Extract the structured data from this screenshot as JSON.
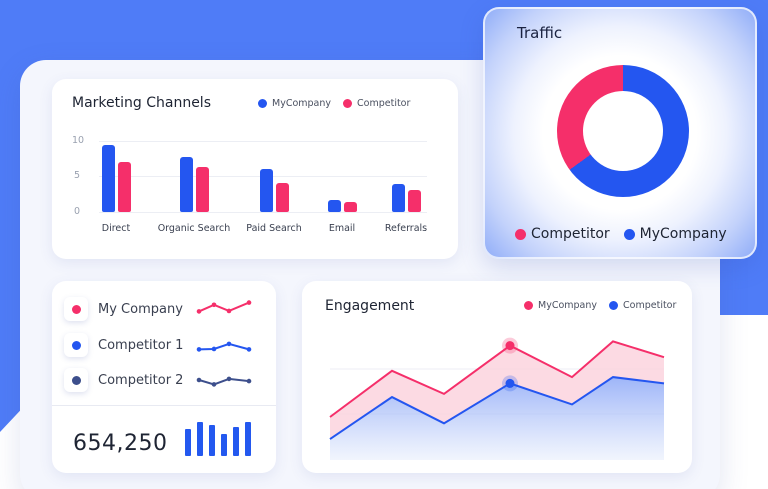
{
  "colors": {
    "my_company": "#2456f0",
    "competitor": "#f52f6a",
    "competitor2": "#3d4f8c",
    "background": "#4f7cf7"
  },
  "marketing": {
    "title": "Marketing Channels",
    "legend": [
      "MyCompany",
      "Competitor"
    ],
    "y_ticks": [
      "10",
      "5",
      "0"
    ]
  },
  "traffic": {
    "title": "Traffic",
    "legend": [
      "Competitor",
      "MyCompany"
    ]
  },
  "companies": {
    "items": [
      {
        "name": "My Company",
        "color": "#f52f6a"
      },
      {
        "name": "Competitor 1",
        "color": "#2456f0"
      },
      {
        "name": "Competitor 2",
        "color": "#3d4f8c"
      }
    ],
    "total": "654,250"
  },
  "engagement": {
    "title": "Engagement",
    "legend": [
      "MyCompany",
      "Competitor"
    ]
  },
  "chart_data": [
    {
      "type": "bar",
      "title": "Marketing Channels",
      "categories": [
        "Direct",
        "Organic Search",
        "Paid Search",
        "Email",
        "Referrals"
      ],
      "series": [
        {
          "name": "MyCompany",
          "values": [
            9.4,
            7.8,
            6.0,
            1.7,
            4.0
          ]
        },
        {
          "name": "Competitor",
          "values": [
            7.0,
            6.4,
            4.1,
            1.4,
            3.1
          ]
        }
      ],
      "xlabel": "",
      "ylabel": "",
      "ylim": [
        0,
        10
      ],
      "yticks": [
        0,
        5,
        10
      ],
      "grid": true,
      "legend_position": "top-right"
    },
    {
      "type": "pie",
      "title": "Traffic",
      "donut": true,
      "categories": [
        "Competitor",
        "MyCompany"
      ],
      "values": [
        35,
        65
      ],
      "legend_position": "bottom"
    },
    {
      "type": "line",
      "title": "Sparklines",
      "x": [
        1,
        2,
        3,
        4
      ],
      "series": [
        {
          "name": "My Company",
          "values": [
            3,
            6,
            3.2,
            7
          ]
        },
        {
          "name": "Competitor 1",
          "values": [
            3,
            3.2,
            5.5,
            3
          ]
        },
        {
          "name": "Competitor 2",
          "values": [
            5,
            3,
            5.5,
            4.5
          ]
        }
      ]
    },
    {
      "type": "bar",
      "title": "Total",
      "values": [
        78,
        100,
        90,
        64,
        86,
        100
      ]
    },
    {
      "type": "area",
      "title": "Engagement",
      "x": [
        1,
        2,
        3,
        4,
        5,
        6,
        7
      ],
      "series": [
        {
          "name": "MyCompany",
          "values": [
            40,
            84,
            62,
            108,
            78,
            112,
            97
          ]
        },
        {
          "name": "Competitor",
          "values": [
            19,
            59,
            34,
            72,
            52,
            78,
            72
          ]
        }
      ],
      "highlight_index": 3,
      "legend_position": "top-right",
      "grid": true
    }
  ]
}
